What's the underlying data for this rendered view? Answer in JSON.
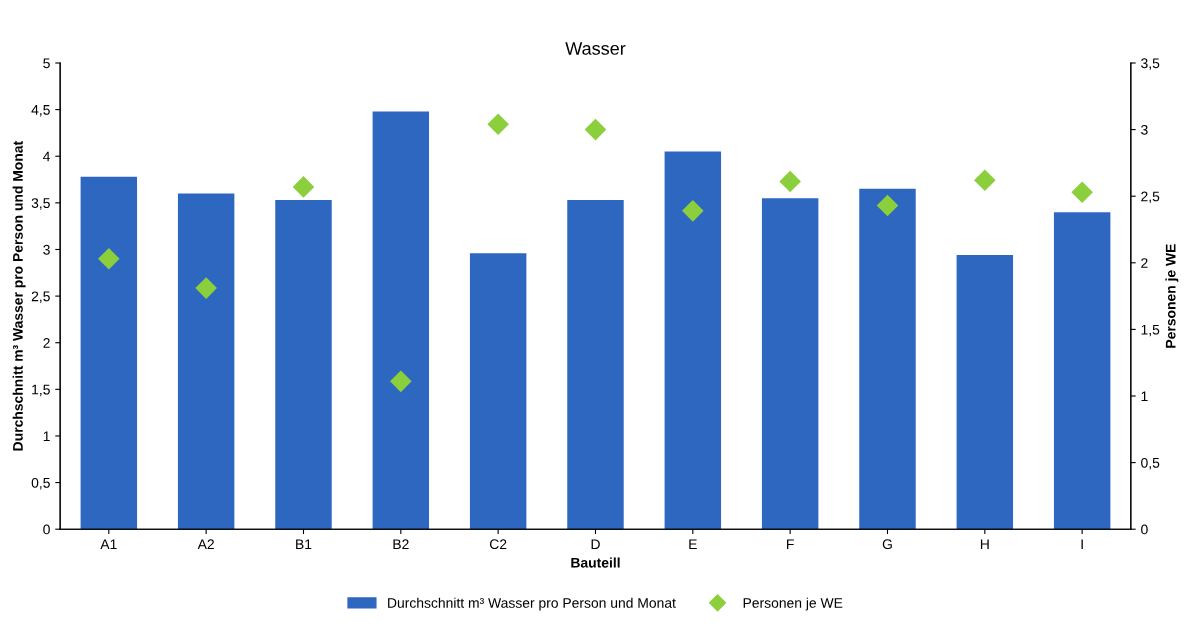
{
  "chart_data": {
    "type": "bar",
    "title": "Wasser",
    "xlabel": "Bauteill",
    "ylabel": "Durchschnitt m³ Wasser pro Person und Monat",
    "y2label": "Personen je WE",
    "categories": [
      "A1",
      "A2",
      "B1",
      "B2",
      "C2",
      "D",
      "E",
      "F",
      "G",
      "H",
      "I"
    ],
    "series": [
      {
        "name": "Durchschnitt m³ Wasser pro Person und Monat",
        "color": "#2e67c0",
        "values": [
          3.78,
          3.6,
          3.53,
          4.48,
          2.96,
          3.53,
          4.05,
          3.55,
          3.65,
          2.94,
          3.4
        ]
      },
      {
        "name": "Personen je WE",
        "type": "scatter",
        "axis": "y2",
        "marker": "diamond",
        "color": "#8ccf3c",
        "values": [
          2.03,
          1.81,
          2.57,
          1.11,
          3.04,
          3.0,
          2.39,
          2.61,
          2.43,
          2.62,
          2.53
        ]
      }
    ],
    "ylim": [
      0,
      5
    ],
    "yticks": [
      0,
      {
        "value": 0.5,
        "label": "0,5"
      },
      1,
      {
        "value": 1.5,
        "label": "1,5"
      },
      2,
      {
        "value": 2.5,
        "label": "2,5"
      },
      3,
      {
        "value": 3.5,
        "label": "3,5"
      },
      4,
      {
        "value": 4.5,
        "label": "4,5"
      },
      5
    ],
    "y2lim": [
      0,
      3.5
    ],
    "y2ticks": [
      0,
      {
        "value": 0.5,
        "label": "0,5"
      },
      1,
      {
        "value": 1.5,
        "label": "1,5"
      },
      2,
      {
        "value": 2.5,
        "label": "2,5"
      },
      3,
      {
        "value": 3.5,
        "label": "3,5"
      }
    ],
    "grid": false,
    "legend": "bottom"
  }
}
